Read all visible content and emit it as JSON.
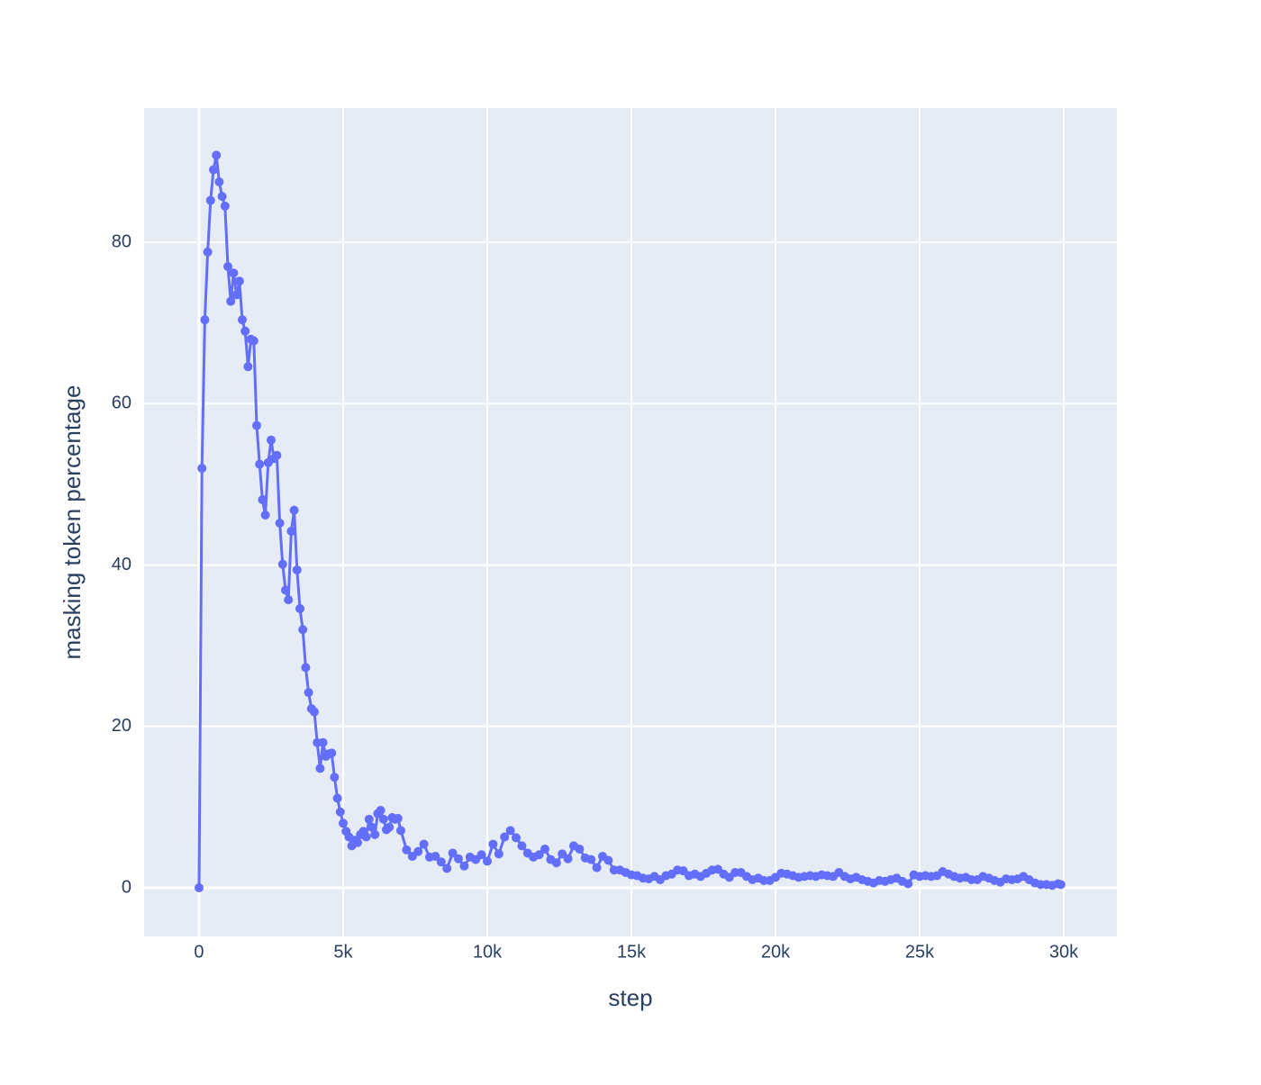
{
  "chart_data": {
    "type": "line",
    "x_label": "step",
    "y_label": "masking token percentage",
    "xlim": [
      -1906,
      31844
    ],
    "ylim": [
      -6.03,
      96.65
    ],
    "xticks": [
      0,
      {
        "value": 5000,
        "label": "5k"
      },
      {
        "value": 10000,
        "label": "10k"
      },
      {
        "value": 15000,
        "label": "15k"
      },
      {
        "value": 20000,
        "label": "20k"
      },
      {
        "value": 25000,
        "label": "25k"
      },
      {
        "value": 30000,
        "label": "30k"
      }
    ],
    "yticks": [
      0,
      20,
      40,
      60,
      80
    ],
    "grid": true,
    "background": "#e5ecf6",
    "series": [
      {
        "name": "masking token percentage",
        "color": "#636efa",
        "x": [
          0,
          100,
          200,
          300,
          400,
          500,
          600,
          700,
          800,
          900,
          1000,
          1100,
          1200,
          1300,
          1400,
          1500,
          1600,
          1700,
          1800,
          1900,
          2000,
          2100,
          2200,
          2300,
          2400,
          2500,
          2600,
          2700,
          2800,
          2900,
          3000,
          3100,
          3200,
          3300,
          3400,
          3500,
          3600,
          3700,
          3800,
          3900,
          4000,
          4100,
          4200,
          4300,
          4400,
          4500,
          4600,
          4700,
          4800,
          4900,
          5000,
          5100,
          5200,
          5300,
          5400,
          5500,
          5600,
          5700,
          5800,
          5900,
          6000,
          6100,
          6200,
          6300,
          6400,
          6500,
          6600,
          6700,
          6800,
          6900,
          7000,
          7200,
          7400,
          7600,
          7800,
          8000,
          8200,
          8400,
          8600,
          8800,
          9000,
          9200,
          9400,
          9600,
          9800,
          10000,
          10200,
          10400,
          10600,
          10800,
          11000,
          11200,
          11400,
          11600,
          11800,
          12000,
          12200,
          12400,
          12600,
          12800,
          13000,
          13200,
          13400,
          13600,
          13800,
          14000,
          14200,
          14400,
          14600,
          14800,
          15000,
          15200,
          15400,
          15600,
          15800,
          16000,
          16200,
          16400,
          16600,
          16800,
          17000,
          17200,
          17400,
          17600,
          17800,
          18000,
          18200,
          18400,
          18600,
          18800,
          19000,
          19200,
          19400,
          19600,
          19800,
          20000,
          20200,
          20400,
          20600,
          20800,
          21000,
          21200,
          21400,
          21600,
          21800,
          22000,
          22200,
          22400,
          22600,
          22800,
          23000,
          23200,
          23400,
          23600,
          23800,
          24000,
          24200,
          24400,
          24600,
          24800,
          25000,
          25200,
          25400,
          25600,
          25800,
          26000,
          26200,
          26400,
          26600,
          26800,
          27000,
          27200,
          27400,
          27600,
          27800,
          28000,
          28200,
          28400,
          28600,
          28800,
          29000,
          29200,
          29400,
          29600,
          29800,
          29900
        ],
        "values": [
          0,
          52,
          70.4,
          78.8,
          85.2,
          89,
          90.8,
          87.5,
          85.7,
          84.5,
          77,
          72.7,
          76.2,
          73.5,
          75.2,
          70.4,
          69,
          64.6,
          68,
          67.8,
          57.3,
          52.5,
          48.1,
          46.2,
          52.7,
          55.5,
          53.2,
          53.6,
          45.2,
          40.1,
          36.9,
          35.7,
          44.2,
          46.8,
          39.4,
          34.6,
          32,
          27.3,
          24.2,
          22.2,
          21.8,
          18,
          14.8,
          18,
          16.3,
          16.6,
          16.7,
          13.7,
          11.1,
          9.4,
          8,
          7,
          6.3,
          5.2,
          5.9,
          5.6,
          6.6,
          7,
          6.3,
          8.5,
          7.5,
          6.6,
          9.2,
          9.6,
          8.5,
          7.2,
          7.5,
          8.7,
          8.5,
          8.6,
          7.1,
          4.7,
          3.9,
          4.5,
          5.4,
          3.8,
          3.9,
          3.2,
          2.4,
          4.3,
          3.6,
          2.7,
          3.8,
          3.5,
          4.1,
          3.3,
          5.4,
          4.2,
          6.3,
          7.1,
          6.2,
          5.2,
          4.3,
          3.8,
          4.1,
          4.8,
          3.5,
          3.1,
          4.2,
          3.6,
          5.2,
          4.8,
          3.7,
          3.5,
          2.5,
          3.9,
          3.4,
          2.2,
          2.2,
          1.9,
          1.6,
          1.5,
          1.2,
          1.1,
          1.4,
          1.0,
          1.5,
          1.7,
          2.2,
          2.1,
          1.5,
          1.7,
          1.4,
          1.8,
          2.2,
          2.3,
          1.7,
          1.3,
          1.9,
          1.9,
          1.4,
          1.0,
          1.2,
          0.9,
          0.9,
          1.3,
          1.8,
          1.7,
          1.5,
          1.3,
          1.4,
          1.5,
          1.4,
          1.6,
          1.5,
          1.4,
          1.9,
          1.4,
          1.1,
          1.3,
          1.0,
          0.8,
          0.6,
          0.9,
          0.8,
          1.0,
          1.2,
          0.8,
          0.5,
          1.6,
          1.4,
          1.5,
          1.4,
          1.5,
          2.0,
          1.7,
          1.4,
          1.2,
          1.3,
          1.0,
          1.0,
          1.4,
          1.2,
          0.9,
          0.7,
          1.1,
          1.0,
          1.1,
          1.4,
          1.0,
          0.6,
          0.4,
          0.4,
          0.3,
          0.5,
          0.4
        ]
      }
    ]
  }
}
